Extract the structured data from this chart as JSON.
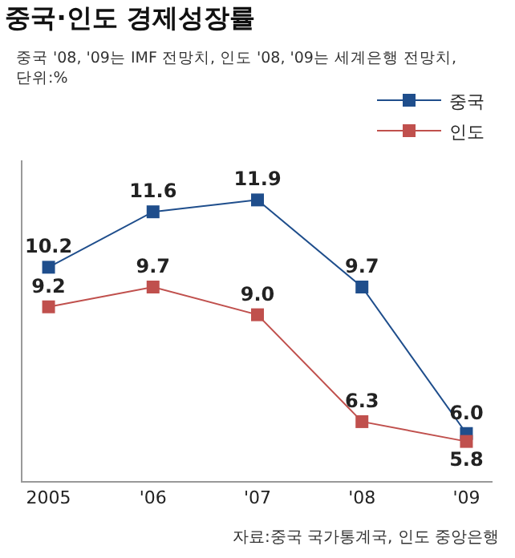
{
  "chart_data": {
    "type": "line",
    "title": "중국·인도 경제성장률",
    "subtitle": "중국 '08, '09는 IMF 전망치, 인도 '08, '09는 세계은행 전망치,\n단위:%",
    "categories": [
      "2005",
      "'06",
      "'07",
      "'08",
      "'09"
    ],
    "series": [
      {
        "name": "중국",
        "color": "#1f4e8c",
        "values": [
          10.2,
          11.6,
          11.9,
          9.7,
          6.0
        ],
        "value_labels": [
          "10.2",
          "11.6",
          "11.9",
          "9.7",
          "6.0"
        ]
      },
      {
        "name": "인도",
        "color": "#c0504d",
        "values": [
          9.2,
          9.7,
          9.0,
          6.3,
          5.8
        ],
        "value_labels": [
          "9.2",
          "9.7",
          "9.0",
          "6.3",
          "5.8"
        ]
      }
    ],
    "ylim": [
      4.8,
      12.9
    ],
    "tick_labels": "x",
    "marker": "square",
    "legend": "top right",
    "grid": false,
    "annotations": [
      "자료:중국 국가통계국, 인도 중앙은행"
    ]
  }
}
